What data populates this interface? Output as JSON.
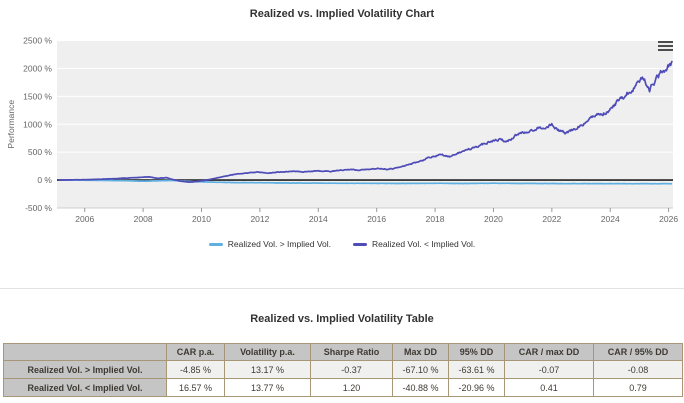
{
  "chart": {
    "title": "Realized vs. Implied Volatility Chart",
    "menu_icon": "hamburger-icon"
  },
  "chart_data": {
    "type": "line",
    "title": "Realized vs. Implied Volatility Chart",
    "xlabel": "",
    "ylabel": "Performance",
    "ylim": [
      -500,
      2500
    ],
    "xlim": [
      2005.05,
      2026.15
    ],
    "grid": true,
    "legend_position": "bottom",
    "plot_bg": "#efefef",
    "grid_color": "#ffffff",
    "zero_line_color": "#3c3c3c",
    "axis_label_color": "#666666",
    "y_ticks": [
      "2500 %",
      "2000 %",
      "1500 %",
      "1000 %",
      "500 %",
      "0 %",
      "-500 %"
    ],
    "y_tick_values": [
      2500,
      2000,
      1500,
      1000,
      500,
      0,
      -500
    ],
    "x_ticks": [
      2006,
      2008,
      2010,
      2012,
      2014,
      2016,
      2018,
      2020,
      2022,
      2024,
      2026
    ],
    "series": [
      {
        "name": "Realized Vol. > Implied Vol.",
        "color": "#5fb0e1",
        "points": [
          [
            2005.1,
            0
          ],
          [
            2006,
            -3
          ],
          [
            2006.8,
            -7
          ],
          [
            2007.4,
            -12
          ],
          [
            2008,
            -20
          ],
          [
            2008.6,
            -12
          ],
          [
            2009,
            -6
          ],
          [
            2009.4,
            -18
          ],
          [
            2009.8,
            -30
          ],
          [
            2010.5,
            -38
          ],
          [
            2011,
            -43
          ],
          [
            2012,
            -48
          ],
          [
            2013,
            -52
          ],
          [
            2014,
            -55
          ],
          [
            2015,
            -57
          ],
          [
            2016,
            -59
          ],
          [
            2017,
            -60
          ],
          [
            2018,
            -57
          ],
          [
            2019,
            -61
          ],
          [
            2020,
            -56
          ],
          [
            2021,
            -60
          ],
          [
            2022,
            -62
          ],
          [
            2023,
            -63
          ],
          [
            2024,
            -64
          ],
          [
            2025,
            -65
          ],
          [
            2026.12,
            -65
          ]
        ]
      },
      {
        "name": "Realized Vol. < Implied Vol.",
        "color": "#4f4cb8",
        "points": [
          [
            2005.1,
            0
          ],
          [
            2005.5,
            3
          ],
          [
            2006,
            8
          ],
          [
            2006.5,
            15
          ],
          [
            2007,
            25
          ],
          [
            2007.5,
            38
          ],
          [
            2007.9,
            48
          ],
          [
            2008.2,
            55
          ],
          [
            2008.5,
            32
          ],
          [
            2008.8,
            45
          ],
          [
            2009,
            12
          ],
          [
            2009.3,
            -22
          ],
          [
            2009.6,
            -38
          ],
          [
            2010,
            -15
          ],
          [
            2010.4,
            22
          ],
          [
            2010.8,
            68
          ],
          [
            2011.2,
            108
          ],
          [
            2011.6,
            128
          ],
          [
            2011.9,
            140
          ],
          [
            2012.3,
            128
          ],
          [
            2012.7,
            148
          ],
          [
            2013.1,
            160
          ],
          [
            2013.5,
            148
          ],
          [
            2014,
            163
          ],
          [
            2014.4,
            155
          ],
          [
            2014.8,
            178
          ],
          [
            2015.1,
            190
          ],
          [
            2015.4,
            178
          ],
          [
            2015.8,
            198
          ],
          [
            2016.1,
            208
          ],
          [
            2016.4,
            192
          ],
          [
            2016.8,
            228
          ],
          [
            2017.2,
            298
          ],
          [
            2017.5,
            338
          ],
          [
            2017.9,
            420
          ],
          [
            2018.2,
            455
          ],
          [
            2018.5,
            425
          ],
          [
            2018.9,
            505
          ],
          [
            2019.2,
            560
          ],
          [
            2019.5,
            615
          ],
          [
            2019.8,
            672
          ],
          [
            2020.2,
            728
          ],
          [
            2020.45,
            685
          ],
          [
            2020.8,
            815
          ],
          [
            2021.1,
            860
          ],
          [
            2021.4,
            905
          ],
          [
            2021.7,
            945
          ],
          [
            2022,
            995
          ],
          [
            2022.2,
            898
          ],
          [
            2022.45,
            835
          ],
          [
            2022.65,
            878
          ],
          [
            2022.9,
            955
          ],
          [
            2023.1,
            1005
          ],
          [
            2023.4,
            1115
          ],
          [
            2023.65,
            1175
          ],
          [
            2023.9,
            1225
          ],
          [
            2024.1,
            1320
          ],
          [
            2024.35,
            1470
          ],
          [
            2024.6,
            1560
          ],
          [
            2024.85,
            1670
          ],
          [
            2025.1,
            1828
          ],
          [
            2025.35,
            1618
          ],
          [
            2025.55,
            1790
          ],
          [
            2025.75,
            1915
          ],
          [
            2025.95,
            2040
          ],
          [
            2026.12,
            2135
          ]
        ]
      }
    ]
  },
  "table": {
    "title": "Realized vs. Implied Volatility Table",
    "columns": [
      "",
      "CAR p.a.",
      "Volatility p.a.",
      "Sharpe Ratio",
      "Max DD",
      "95% DD",
      "CAR / max DD",
      "CAR / 95% DD"
    ],
    "rows": [
      {
        "label": "Realized Vol. > Implied Vol.",
        "values": [
          "-4.85 %",
          "13.17 %",
          "-0.37",
          "-67.10 %",
          "-63.61 %",
          "-0.07",
          "-0.08"
        ]
      },
      {
        "label": "Realized Vol. < Implied Vol.",
        "values": [
          "16.57 %",
          "13.77 %",
          "1.20",
          "-40.88 %",
          "-20.96 %",
          "0.41",
          "0.79"
        ]
      }
    ],
    "border_color": "#a89776",
    "header_bg": "#c5c5c5",
    "row_alt_bg": "#f0f0ee"
  }
}
